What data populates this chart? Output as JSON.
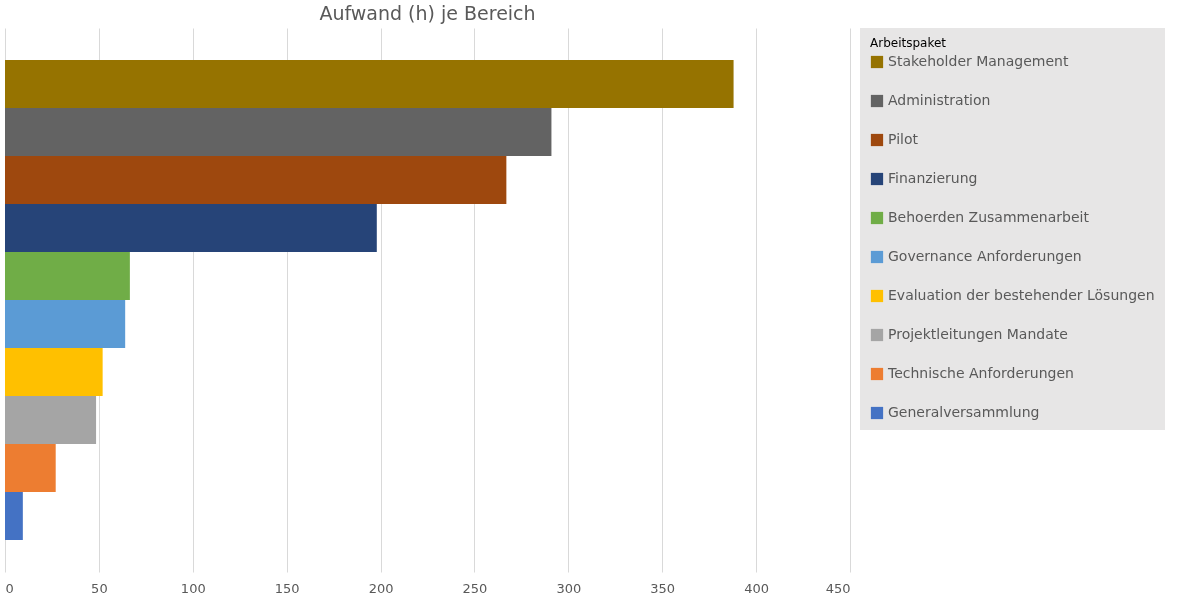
{
  "chart_data": {
    "type": "bar",
    "orientation": "horizontal",
    "title": "Aufwand (h) je Bereich",
    "legend_title": "Arbeitspaket",
    "categories": [
      null
    ],
    "series": [
      {
        "name": "Stakeholder Management",
        "color": "#967300",
        "values": [
          388
        ]
      },
      {
        "name": "Administration",
        "color": "#636363",
        "values": [
          291
        ]
      },
      {
        "name": "Pilot",
        "color": "#9e480e",
        "values": [
          267
        ]
      },
      {
        "name": "Finanzierung",
        "color": "#264478",
        "values": [
          198
        ]
      },
      {
        "name": "Behoerden Zusammenarbeit",
        "color": "#70ad47",
        "values": [
          66.5
        ]
      },
      {
        "name": "Governance Anforderungen",
        "color": "#5b9bd5",
        "values": [
          64
        ]
      },
      {
        "name": "Evaluation der bestehender Lösungen",
        "color": "#ffc000",
        "values": [
          52
        ]
      },
      {
        "name": "Projektleitungen Mandate",
        "color": "#a5a5a5",
        "values": [
          48.5
        ]
      },
      {
        "name": "Technische Anforderungen",
        "color": "#ed7d31",
        "values": [
          27
        ]
      },
      {
        "name": "Generalversammlung",
        "color": "#4472c4",
        "values": [
          9.5
        ]
      }
    ],
    "xlim": [
      0,
      450
    ],
    "xticks": [
      0,
      50,
      100,
      150,
      200,
      250,
      300,
      350,
      400,
      450
    ],
    "grid": "x",
    "legend": "right",
    "tick_labels": "x"
  }
}
